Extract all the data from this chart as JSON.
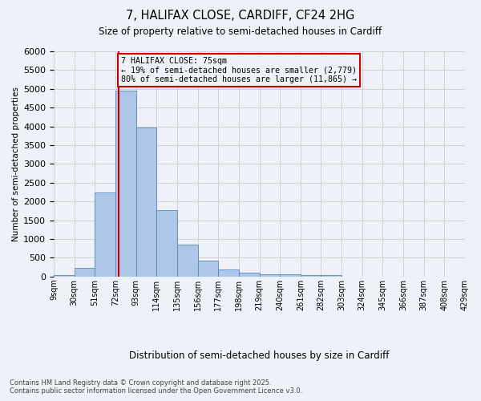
{
  "title1": "7, HALIFAX CLOSE, CARDIFF, CF24 2HG",
  "title2": "Size of property relative to semi-detached houses in Cardiff",
  "xlabel": "Distribution of semi-detached houses by size in Cardiff",
  "ylabel": "Number of semi-detached properties",
  "footer1": "Contains HM Land Registry data © Crown copyright and database right 2025.",
  "footer2": "Contains public sector information licensed under the Open Government Licence v3.0.",
  "bin_labels": [
    "9sqm",
    "30sqm",
    "51sqm",
    "72sqm",
    "93sqm",
    "114sqm",
    "135sqm",
    "156sqm",
    "177sqm",
    "198sqm",
    "219sqm",
    "240sqm",
    "261sqm",
    "282sqm",
    "303sqm",
    "324sqm",
    "345sqm",
    "366sqm",
    "387sqm",
    "408sqm",
    "429sqm"
  ],
  "bar_values": [
    30,
    230,
    2250,
    4950,
    3980,
    1760,
    860,
    420,
    185,
    95,
    60,
    70,
    50,
    30,
    5,
    2,
    1,
    1,
    1,
    1
  ],
  "bar_color": "#aec6e8",
  "bar_edge_color": "#5588bb",
  "property_label": "7 HALIFAX CLOSE: 75sqm",
  "pct_smaller": 19,
  "pct_larger": 80,
  "count_smaller": 2779,
  "count_larger": 11865,
  "red_line_color": "#cc0000",
  "ylim": [
    0,
    6000
  ],
  "yticks": [
    0,
    500,
    1000,
    1500,
    2000,
    2500,
    3000,
    3500,
    4000,
    4500,
    5000,
    5500,
    6000
  ],
  "grid_color": "#cccccc",
  "bg_color": "#eef2f8"
}
